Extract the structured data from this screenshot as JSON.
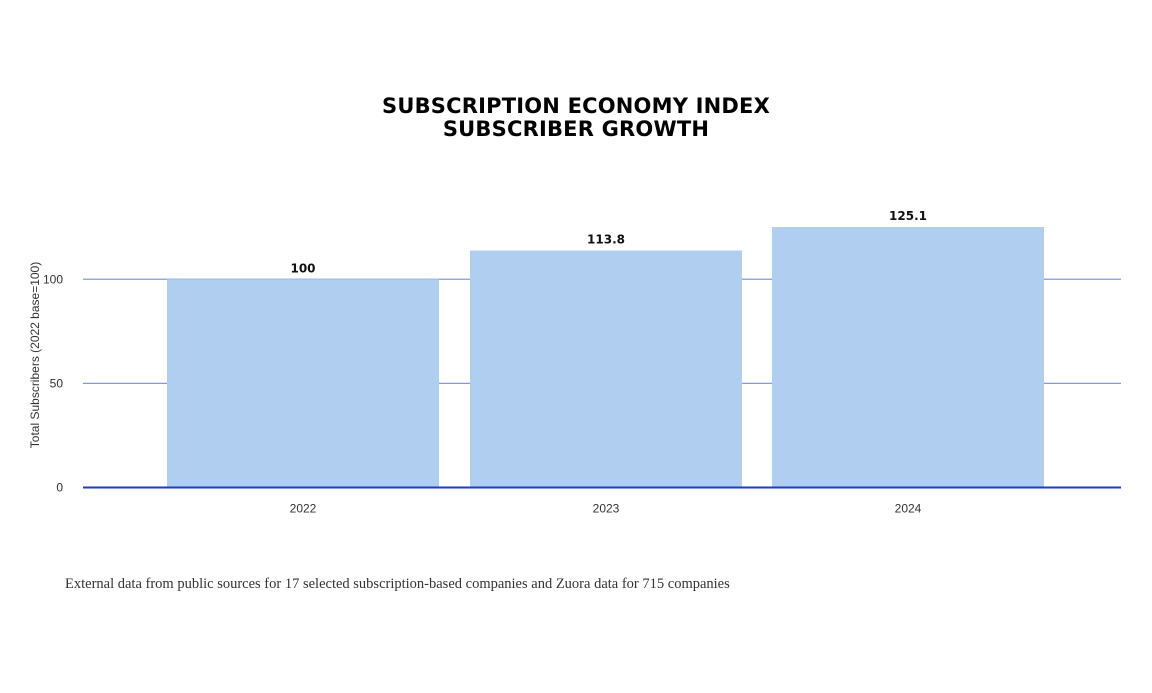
{
  "chart_data": {
    "type": "bar",
    "title_lines": [
      "SUBSCRIPTION ECONOMY INDEX",
      "SUBSCRIBER GROWTH"
    ],
    "categories": [
      "2022",
      "2023",
      "2024"
    ],
    "values": [
      100,
      113.8,
      125.1
    ],
    "data_labels": [
      "100",
      "113.8",
      "125.1"
    ],
    "ylabel": "Total Subscribers (2022 base=100)",
    "xlabel": "",
    "yticks": [
      0,
      50,
      100
    ],
    "ylim": [
      0,
      125.1
    ],
    "grid": true,
    "legend": "none",
    "colors": {
      "bar": "#b0cff0",
      "gridline": "#7f9be0",
      "baseline": "#1a3fc4"
    }
  },
  "footnote": "External data from public sources for 17 selected subscription-based companies and Zuora data for 715 companies"
}
